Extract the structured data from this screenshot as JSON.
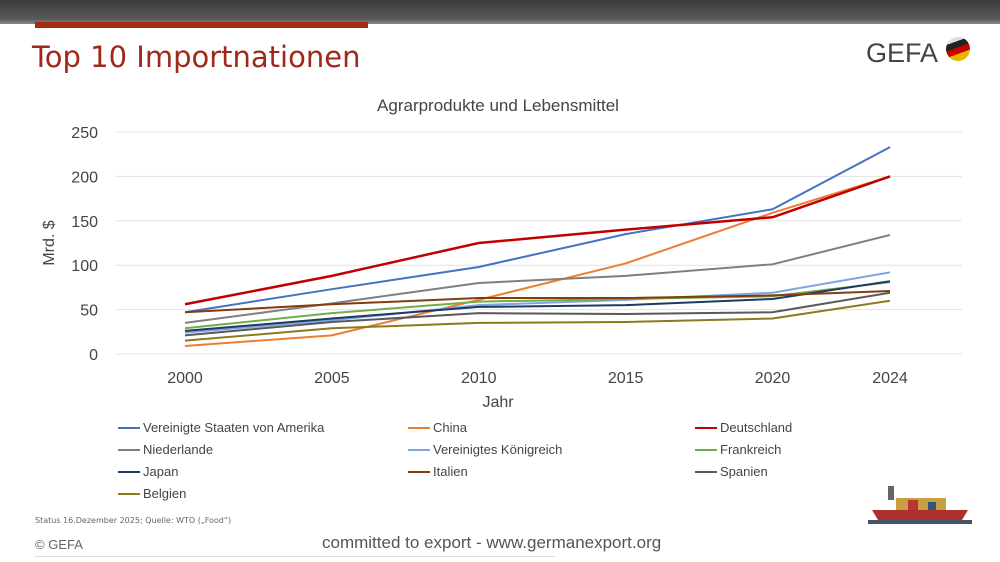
{
  "header": {
    "title": "Top 10 Importnationen",
    "logo": "GEFA"
  },
  "chart_data": {
    "type": "line",
    "title": "Agrarprodukte und Lebensmittel",
    "xlabel": "Jahr",
    "ylabel": "Mrd. $",
    "x": [
      2000,
      2005,
      2010,
      2015,
      2020,
      2024
    ],
    "ylim": [
      0,
      250
    ],
    "yticks": [
      0,
      50,
      100,
      150,
      200,
      250
    ],
    "grid": true,
    "legend": "bottom",
    "series": [
      {
        "name": "Vereinigte Staaten von Amerika",
        "color": "#4472c4",
        "values": [
          47,
          73,
          98,
          135,
          163,
          233
        ]
      },
      {
        "name": "China",
        "color": "#ed7d31",
        "values": [
          9,
          21,
          61,
          102,
          159,
          200
        ]
      },
      {
        "name": "Deutschland",
        "color": "#c00000",
        "values": [
          56,
          88,
          125,
          140,
          154,
          200
        ]
      },
      {
        "name": "Niederlande",
        "color": "#7f7f7f",
        "values": [
          35,
          57,
          80,
          88,
          101,
          134
        ]
      },
      {
        "name": "Vereinigtes Königreich",
        "color": "#7ea6e0",
        "values": [
          24,
          38,
          55,
          61,
          69,
          92
        ]
      },
      {
        "name": "Frankreich",
        "color": "#70ad47",
        "values": [
          29,
          46,
          59,
          62,
          65,
          81
        ]
      },
      {
        "name": "Japan",
        "color": "#1f3864",
        "values": [
          26,
          40,
          53,
          55,
          62,
          82
        ]
      },
      {
        "name": "Italien",
        "color": "#843c0c",
        "values": [
          47,
          56,
          63,
          63,
          66,
          71
        ]
      },
      {
        "name": "Spanien",
        "color": "#595959",
        "values": [
          21,
          36,
          46,
          45,
          47,
          69
        ]
      },
      {
        "name": "Belgien",
        "color": "#8c7a1c",
        "values": [
          15,
          29,
          35,
          36,
          40,
          60
        ]
      }
    ]
  },
  "footer": {
    "status": "Status 16.Dezember 2025; Quelle: WTO („Food“)",
    "copyright": "© GEFA",
    "tagline": "committed to export - www.germanexport.org"
  }
}
